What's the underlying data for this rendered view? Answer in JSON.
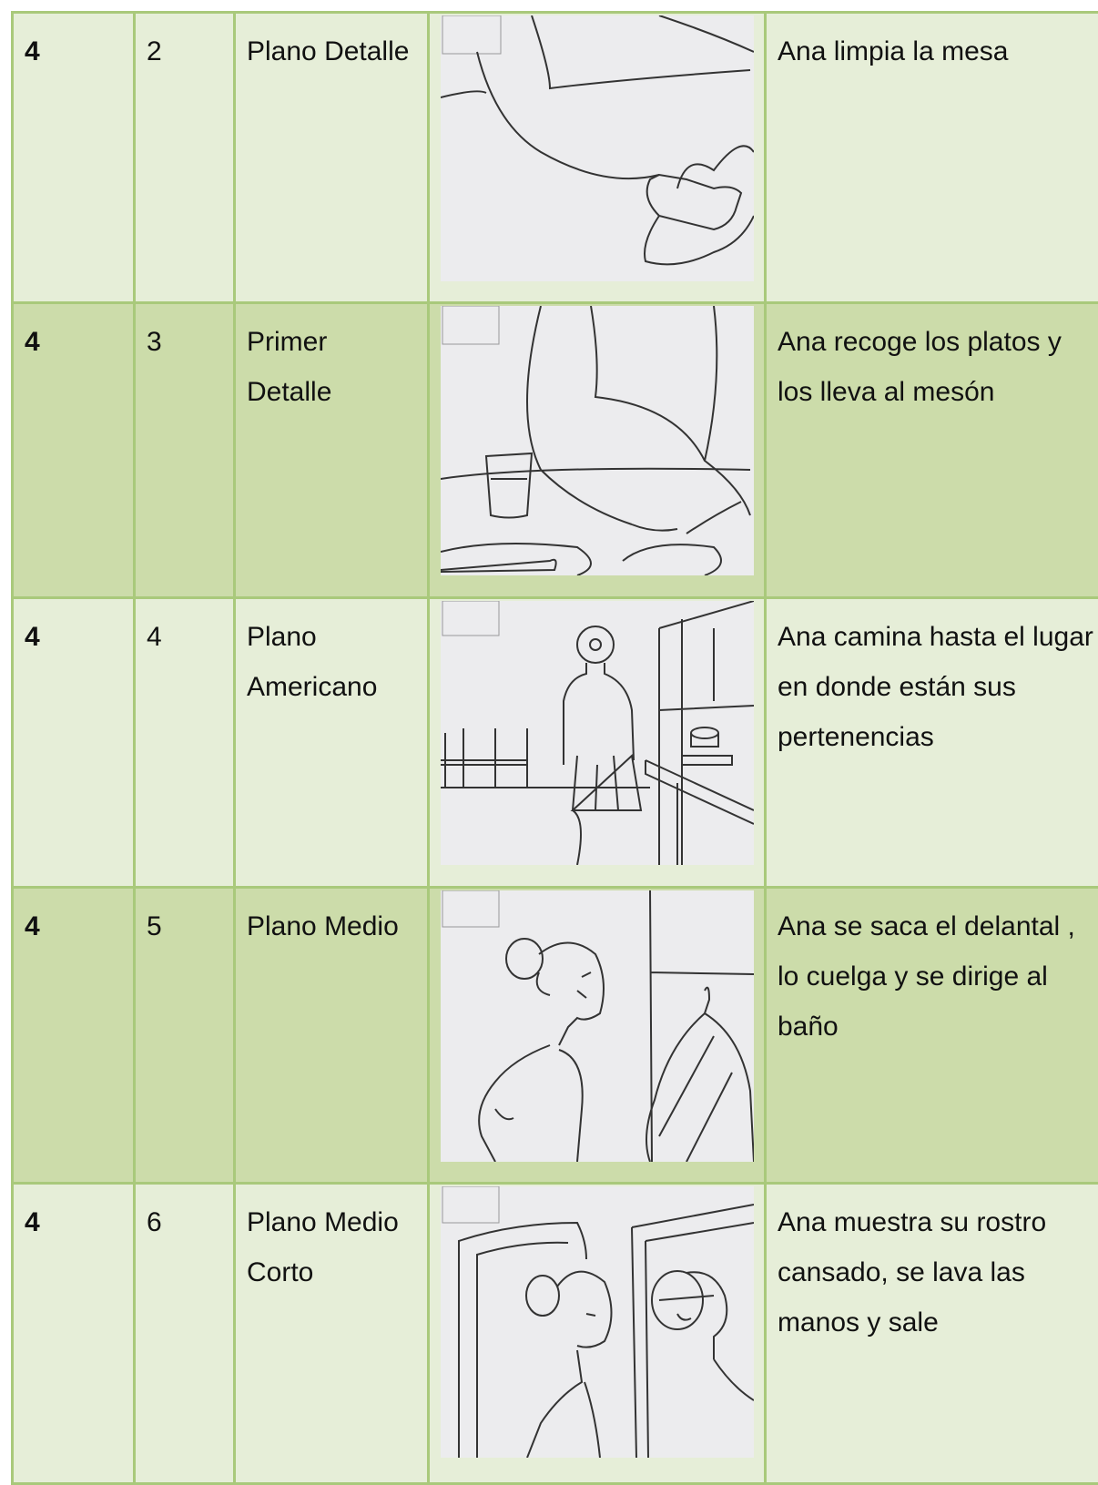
{
  "table": {
    "rows": [
      [
        "4",
        "2",
        "Plano Detalle",
        "Ana limpia la mesa"
      ],
      [
        "4",
        "3",
        "Primer Detalle",
        "Ana recoge los platos y los lleva al mesón"
      ],
      [
        "4",
        "4",
        "Plano Americano",
        "Ana camina hasta el lugar en donde están sus pertenencias"
      ],
      [
        "4",
        "5",
        "Plano Medio",
        "Ana se saca el delantal , lo cuelga y se dirige al baño"
      ],
      [
        "4",
        "6",
        "Plano Medio Corto",
        "Ana muestra su rostro cansado, se lava las manos y sale"
      ]
    ]
  }
}
